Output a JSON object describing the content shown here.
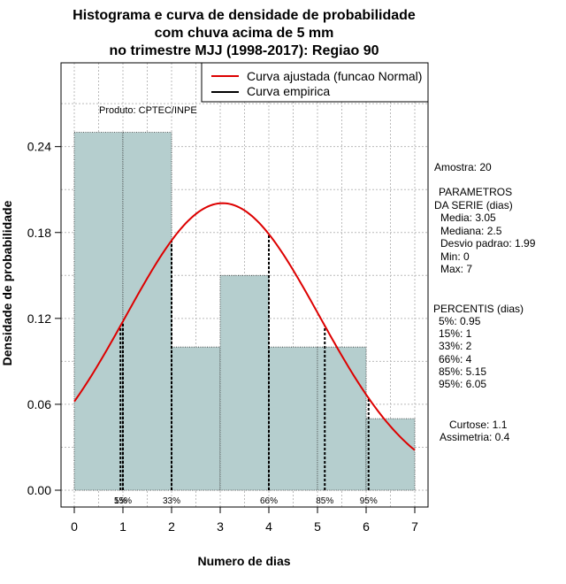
{
  "chart_data": {
    "type": "bar",
    "title_lines": [
      "Histograma e curva de densidade de probabilidade",
      "com chuva acima de 5 mm",
      "no trimestre MJJ (1998-2017): Regiao 90"
    ],
    "xlabel": "Numero de dias",
    "ylabel": "Densidade de probabilidade",
    "xlim": [
      0,
      7
    ],
    "ylim": [
      0,
      0.24
    ],
    "x_ticks": [
      "0",
      "1",
      "2",
      "3",
      "4",
      "5",
      "6",
      "7"
    ],
    "y_ticks": [
      "0.00",
      "0.06",
      "0.12",
      "0.18",
      "0.24"
    ],
    "bins": [
      {
        "start": 0,
        "end": 1,
        "density": 0.25
      },
      {
        "start": 1,
        "end": 2,
        "density": 0.25
      },
      {
        "start": 2,
        "end": 3,
        "density": 0.1
      },
      {
        "start": 3,
        "end": 4,
        "density": 0.15
      },
      {
        "start": 4,
        "end": 5,
        "density": 0.1
      },
      {
        "start": 5,
        "end": 6,
        "density": 0.1
      },
      {
        "start": 6,
        "end": 7,
        "density": 0.05
      }
    ],
    "normal_fit": {
      "mean": 3.05,
      "sd": 1.99
    },
    "percentiles": [
      {
        "label": "5%",
        "value": 0.95
      },
      {
        "label": "15%",
        "value": 1
      },
      {
        "label": "33%",
        "value": 2
      },
      {
        "label": "66%",
        "value": 4
      },
      {
        "label": "85%",
        "value": 5.15
      },
      {
        "label": "95%",
        "value": 6.05
      }
    ],
    "legend": [
      {
        "label": "Curva ajustada (funcao Normal)",
        "color": "#dd0000"
      },
      {
        "label": "Curva empirica",
        "color": "#000000"
      }
    ],
    "colors": {
      "bar_fill": "#b5cece",
      "curve": "#dd0000",
      "grid": "#bbbbbb"
    }
  },
  "produto": "Produto: CPTEC/INPE",
  "stats": {
    "amostra": "Amostra: 20",
    "param_title_1": "PARAMETROS",
    "param_title_2": "DA SERIE (dias)",
    "media": "Media: 3.05",
    "mediana": "Mediana: 2.5",
    "desvio": "Desvio padrao: 1.99",
    "min": "Min: 0",
    "max": "Max: 7",
    "percentis_title": "PERCENTIS (dias)",
    "p5": "5%: 0.95",
    "p15": "15%: 1",
    "p33": "33%: 2",
    "p66": "66%: 4",
    "p85": "85%: 5.15",
    "p95": "95%: 6.05",
    "curtose": "Curtose: 1.1",
    "assimetria": "Assimetria: 0.4"
  }
}
